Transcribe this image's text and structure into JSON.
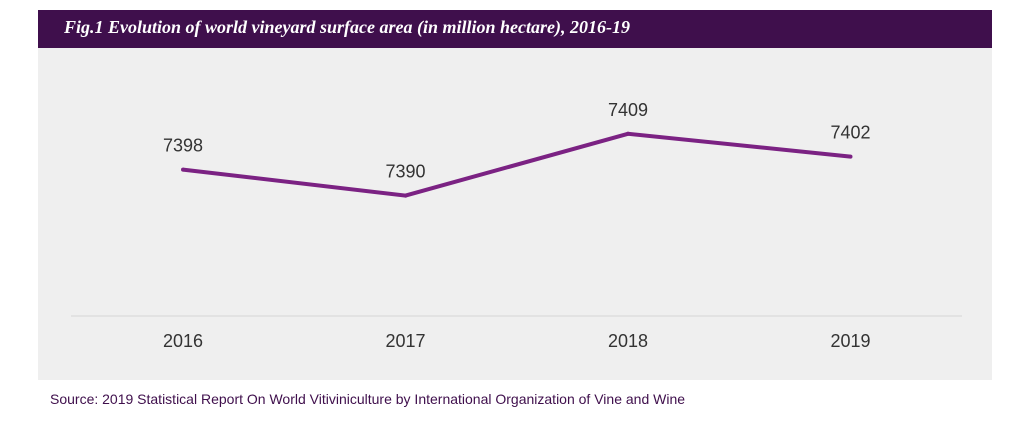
{
  "title": "Fig.1  Evolution of world vineyard surface area (in million hectare), 2016-19",
  "source": "Source: 2019 Statistical Report On World Vitiviniculture by International Organization of Vine and Wine",
  "colors": {
    "title_bg": "#3f0f4c",
    "line": "#7b2283",
    "panel": "#efefef"
  },
  "chart_data": {
    "type": "line",
    "title": "Evolution of world vineyard surface area (in million hectare), 2016-19",
    "categories": [
      "2016",
      "2017",
      "2018",
      "2019"
    ],
    "series": [
      {
        "name": "Vineyard surface area",
        "values": [
          7398,
          7390,
          7409,
          7402
        ]
      }
    ],
    "data_labels": [
      "7398",
      "7390",
      "7409",
      "7402"
    ],
    "xlabel": "",
    "ylabel": "",
    "ylim": [
      7373,
      7412
    ],
    "grid": false,
    "legend": "none"
  }
}
